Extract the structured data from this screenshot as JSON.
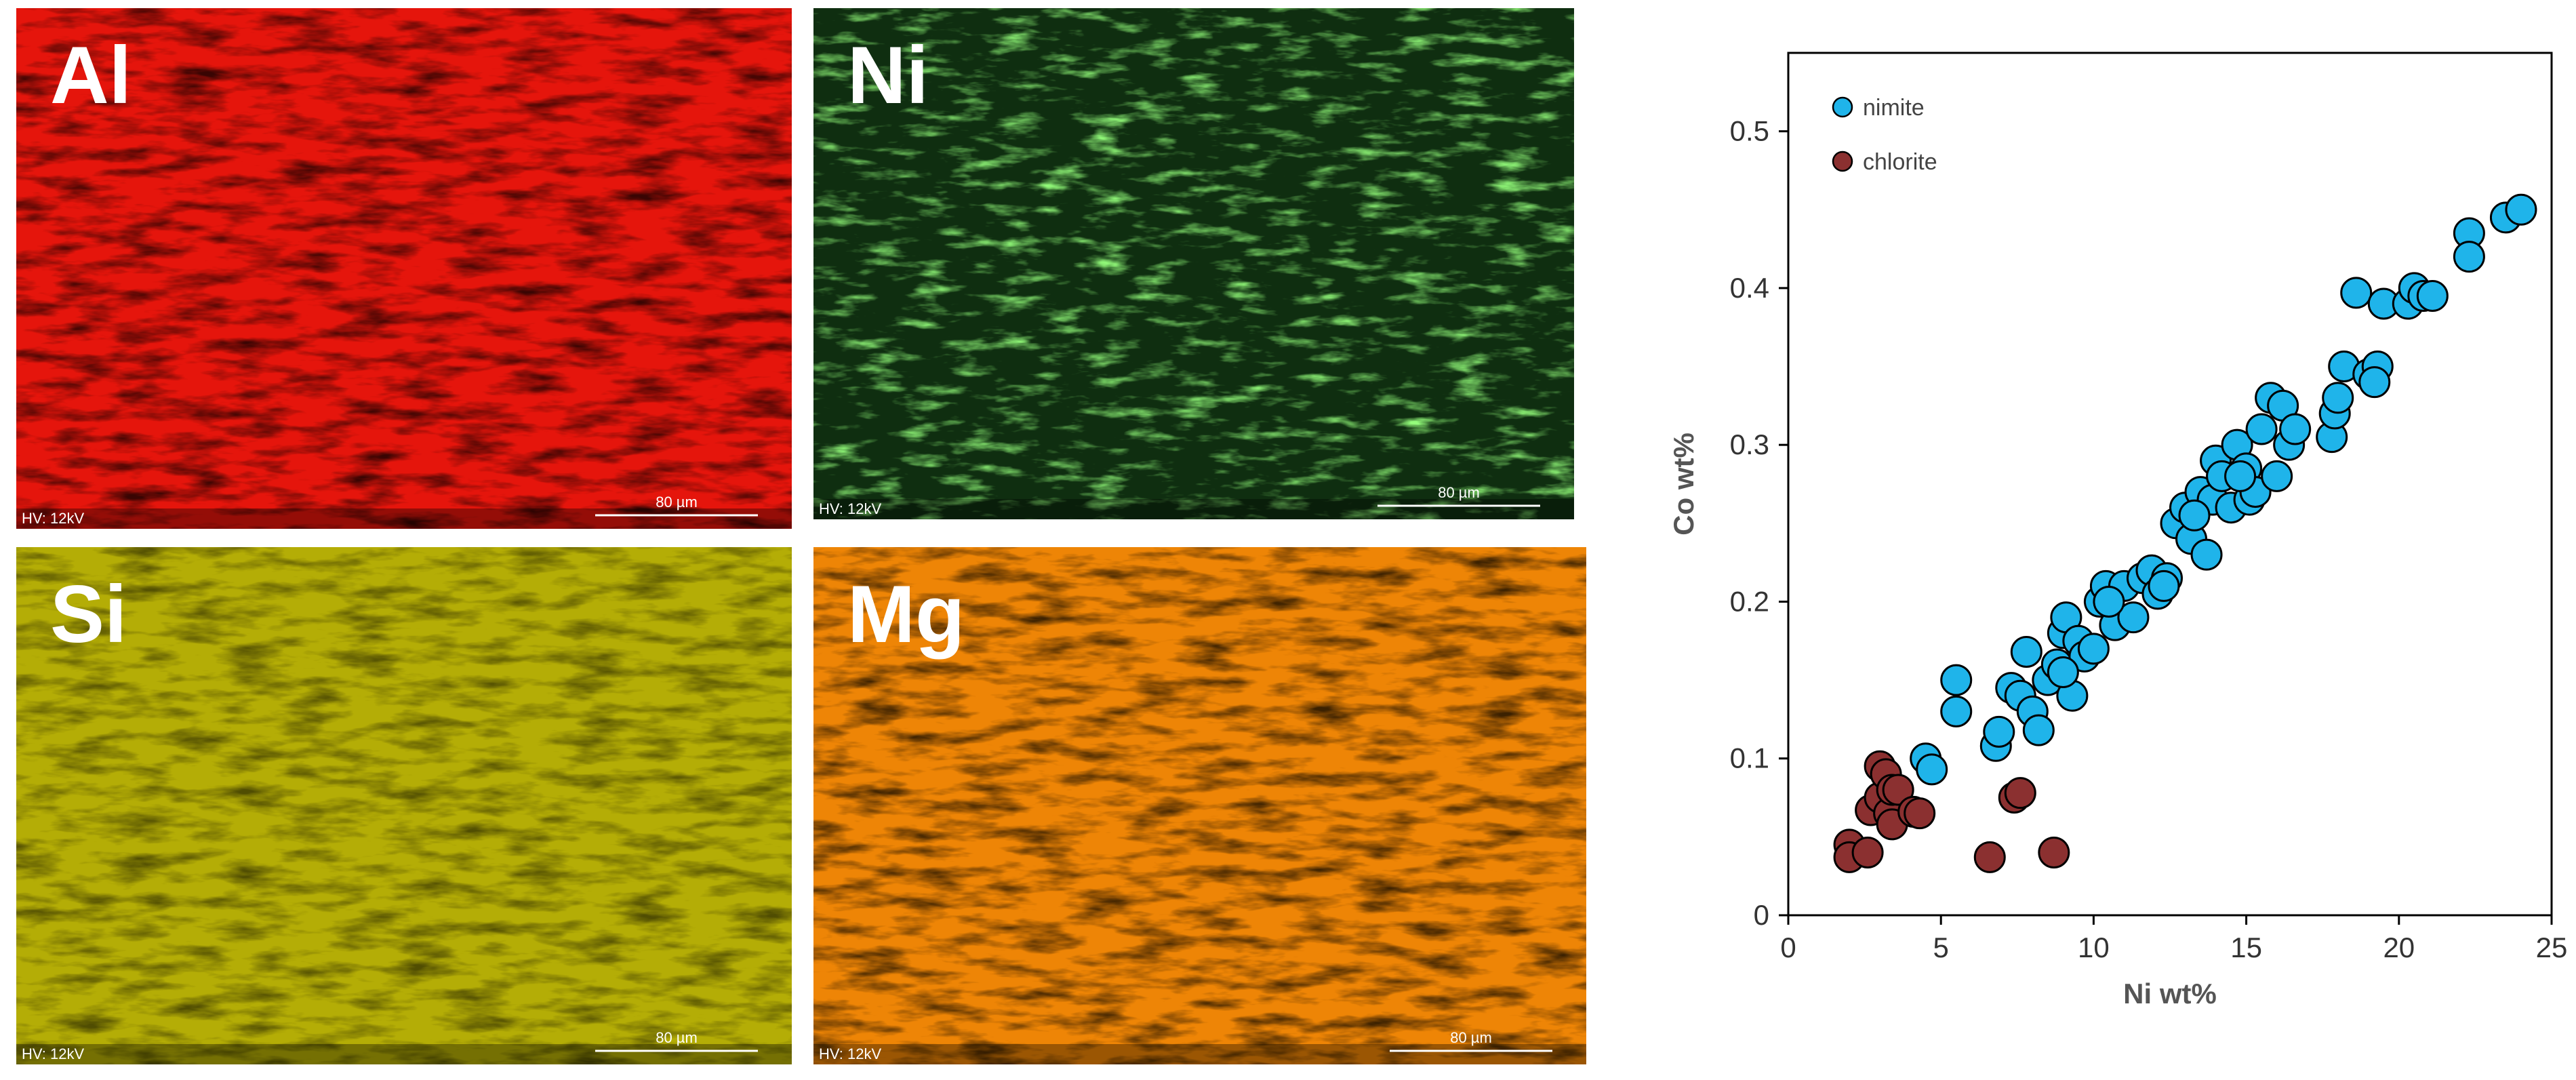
{
  "panels": [
    {
      "label": "Al",
      "hv": "HV: 12kV",
      "scale": "80 µm",
      "color": "#e5150c"
    },
    {
      "label": "Ni",
      "hv": "HV: 12kV",
      "scale": "80 µm",
      "color": "#0f2e10"
    },
    {
      "label": "Si",
      "hv": "HV: 12kV",
      "scale": "80 µm",
      "color": "#b4ad06"
    },
    {
      "label": "Mg",
      "hv": "HV: 12kV",
      "scale": "80 µm",
      "color": "#ee8506"
    }
  ],
  "chart_data": {
    "type": "scatter",
    "xlabel": "Ni wt%",
    "ylabel": "Co wt%",
    "xlim": [
      0,
      25
    ],
    "ylim": [
      0,
      0.55
    ],
    "xticks": [
      0,
      5,
      10,
      15,
      20,
      25
    ],
    "yticks": [
      0,
      0.1,
      0.2,
      0.3,
      0.4,
      0.5
    ],
    "legend": "upper left",
    "series": [
      {
        "name": "nimite",
        "color": "#1fb4ea",
        "x": [
          4.5,
          4.7,
          5.5,
          5.5,
          6.8,
          6.9,
          7.3,
          7.8,
          7.6,
          8.0,
          8.2,
          8.5,
          8.8,
          9.0,
          9.1,
          9.3,
          9.5,
          9.7,
          10.0,
          10.2,
          10.4,
          10.7,
          11.0,
          11.3,
          11.6,
          11.9,
          12.1,
          12.4,
          12.7,
          13.0,
          13.2,
          13.5,
          13.7,
          13.9,
          14.0,
          14.2,
          14.5,
          14.7,
          15.0,
          15.1,
          15.3,
          15.5,
          15.8,
          16.0,
          16.2,
          16.4,
          16.6,
          17.8,
          17.9,
          18.0,
          18.2,
          18.6,
          19.0,
          19.3,
          19.2,
          19.5,
          20.3,
          20.5,
          20.8,
          21.1,
          22.3,
          22.3,
          23.5,
          24.0,
          9.0,
          10.5,
          12.3,
          14.8,
          13.3
        ],
        "values": [
          0.1,
          0.093,
          0.15,
          0.13,
          0.108,
          0.117,
          0.145,
          0.168,
          0.14,
          0.13,
          0.118,
          0.15,
          0.16,
          0.18,
          0.19,
          0.14,
          0.175,
          0.165,
          0.17,
          0.2,
          0.21,
          0.185,
          0.21,
          0.19,
          0.215,
          0.22,
          0.205,
          0.215,
          0.25,
          0.26,
          0.24,
          0.27,
          0.23,
          0.265,
          0.29,
          0.28,
          0.26,
          0.3,
          0.285,
          0.265,
          0.27,
          0.31,
          0.33,
          0.28,
          0.325,
          0.3,
          0.31,
          0.305,
          0.32,
          0.33,
          0.35,
          0.397,
          0.345,
          0.35,
          0.34,
          0.39,
          0.39,
          0.4,
          0.395,
          0.395,
          0.435,
          0.42,
          0.445,
          0.45,
          0.155,
          0.2,
          0.21,
          0.28,
          0.255
        ]
      },
      {
        "name": "chlorite",
        "color": "#8b3030",
        "x": [
          2.0,
          2.0,
          2.6,
          2.7,
          3.0,
          3.0,
          3.2,
          3.3,
          3.4,
          3.4,
          3.6,
          4.1,
          4.3,
          6.6,
          7.4,
          7.6,
          8.7
        ],
        "values": [
          0.045,
          0.037,
          0.04,
          0.067,
          0.075,
          0.095,
          0.09,
          0.065,
          0.08,
          0.058,
          0.08,
          0.066,
          0.065,
          0.037,
          0.075,
          0.078,
          0.04
        ]
      }
    ]
  }
}
